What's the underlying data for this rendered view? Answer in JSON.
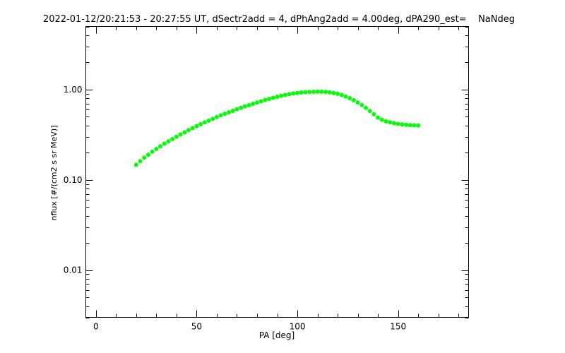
{
  "chart_data": {
    "type": "scatter",
    "title": "2022-01-12/20:21:53 - 20:27:55 UT, dSectr2add = 4, dPhAng2add = 4.00deg, dPA290_est=    NaNdeg",
    "xlabel": "PA [deg]",
    "ylabel": "nflux [#/(cm2 s sr MeV)]",
    "xlim": [
      -5,
      185
    ],
    "ylim": [
      0.003,
      5
    ],
    "yscale": "log",
    "grid": false,
    "xticks": [
      0,
      50,
      100,
      150
    ],
    "xtick_labels": [
      "0",
      "50",
      "100",
      "150"
    ],
    "yticks": [
      0.01,
      0.1,
      1.0
    ],
    "ytick_labels": [
      "0.01",
      "0.10",
      "1.00"
    ],
    "series": [
      {
        "color": "#00ff00",
        "x": [
          20,
          22,
          24,
          26,
          28,
          30,
          32,
          34,
          36,
          38,
          40,
          42,
          44,
          46,
          48,
          50,
          52,
          54,
          56,
          58,
          60,
          62,
          64,
          66,
          68,
          70,
          72,
          74,
          76,
          78,
          80,
          82,
          84,
          86,
          88,
          90,
          92,
          94,
          96,
          98,
          100,
          102,
          104,
          106,
          108,
          110,
          112,
          114,
          116,
          118,
          120,
          122,
          124,
          126,
          128,
          130,
          132,
          134,
          136,
          138,
          140,
          142,
          144,
          146,
          148,
          150,
          152,
          154,
          156,
          158,
          160
        ],
        "y": [
          0.147,
          0.161,
          0.176,
          0.19,
          0.205,
          0.22,
          0.235,
          0.251,
          0.267,
          0.283,
          0.3,
          0.318,
          0.336,
          0.355,
          0.374,
          0.394,
          0.413,
          0.433,
          0.453,
          0.474,
          0.496,
          0.518,
          0.54,
          0.56,
          0.582,
          0.605,
          0.627,
          0.65,
          0.672,
          0.695,
          0.718,
          0.742,
          0.766,
          0.788,
          0.81,
          0.832,
          0.853,
          0.872,
          0.889,
          0.905,
          0.918,
          0.928,
          0.936,
          0.942,
          0.946,
          0.948,
          0.947,
          0.942,
          0.932,
          0.917,
          0.897,
          0.871,
          0.84,
          0.804,
          0.764,
          0.72,
          0.674,
          0.627,
          0.58,
          0.534,
          0.49,
          0.463,
          0.445,
          0.434,
          0.424,
          0.417,
          0.411,
          0.407,
          0.404,
          0.402,
          0.4
        ]
      }
    ]
  }
}
